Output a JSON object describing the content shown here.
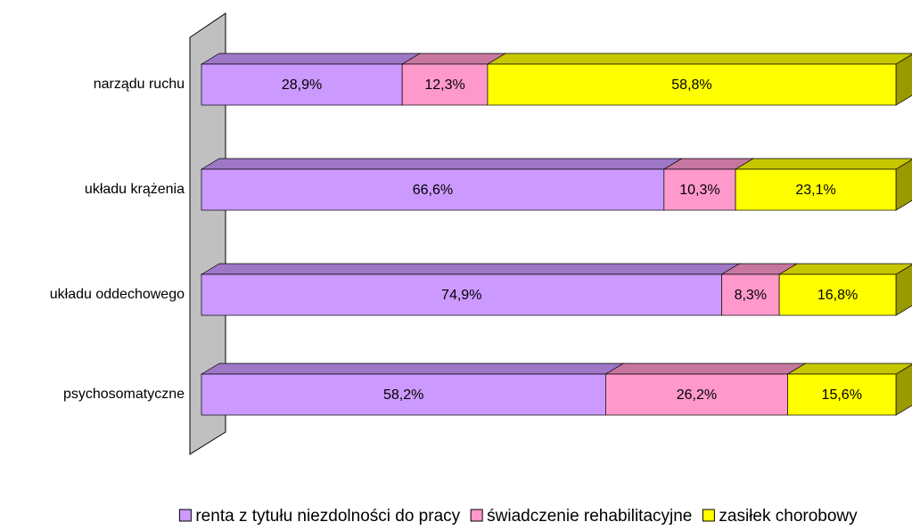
{
  "chart_data": {
    "type": "bar",
    "orientation": "horizontal",
    "stacked": true,
    "categories": [
      "narządu ruchu",
      "układu krążenia",
      "układu oddechowego",
      "psychosomatyczne"
    ],
    "xlim": [
      0,
      100
    ],
    "series": [
      {
        "name": "renta z tytułu niezdolności do pracy",
        "color": "#cc99ff",
        "values": [
          28.9,
          66.6,
          74.9,
          58.2
        ],
        "value_labels": [
          "28,9%",
          "66,6%",
          "74,9%",
          "58,2%"
        ]
      },
      {
        "name": "świadczenie rehabilitacyjne",
        "color": "#ff99cc",
        "values": [
          12.3,
          10.3,
          8.3,
          26.2
        ],
        "value_labels": [
          "12,3%",
          "10,3%",
          "8,3%",
          "26,2%"
        ]
      },
      {
        "name": "zasiłek chorobowy",
        "color": "#ffff00",
        "values": [
          58.8,
          23.1,
          16.8,
          15.6
        ],
        "value_labels": [
          "58,8%",
          "23,1%",
          "16,8%",
          "15,6%"
        ]
      }
    ],
    "legend": "bottom"
  }
}
